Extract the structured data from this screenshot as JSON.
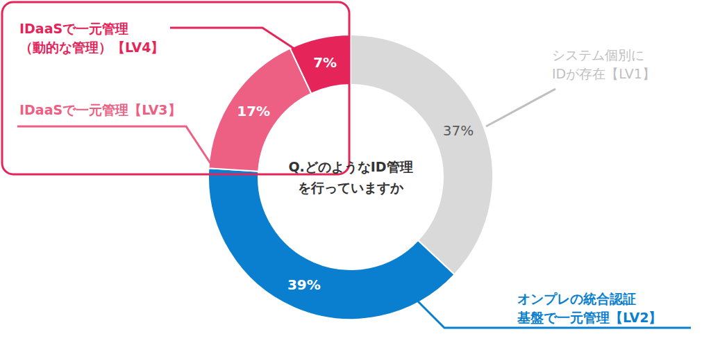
{
  "chart_data": {
    "type": "pie",
    "title": "Q.どのようなID管理\nを行っていますか",
    "categories": [
      "システム個別に\nIDが存在【LV1】",
      "オンプレの統合認証\n基盤で一元管理【LV2】",
      "IDaaSで一元管理【LV3】",
      "IDaaSで一元管理\n（動的な管理）【LV4】"
    ],
    "values": [
      37,
      39,
      17,
      7
    ],
    "value_labels": [
      "37%",
      "39%",
      "17%",
      "7%"
    ],
    "colors": [
      "#d9d9d9",
      "#0a7fcf",
      "#ee5f84",
      "#e5245a"
    ],
    "data_labels": true
  }
}
